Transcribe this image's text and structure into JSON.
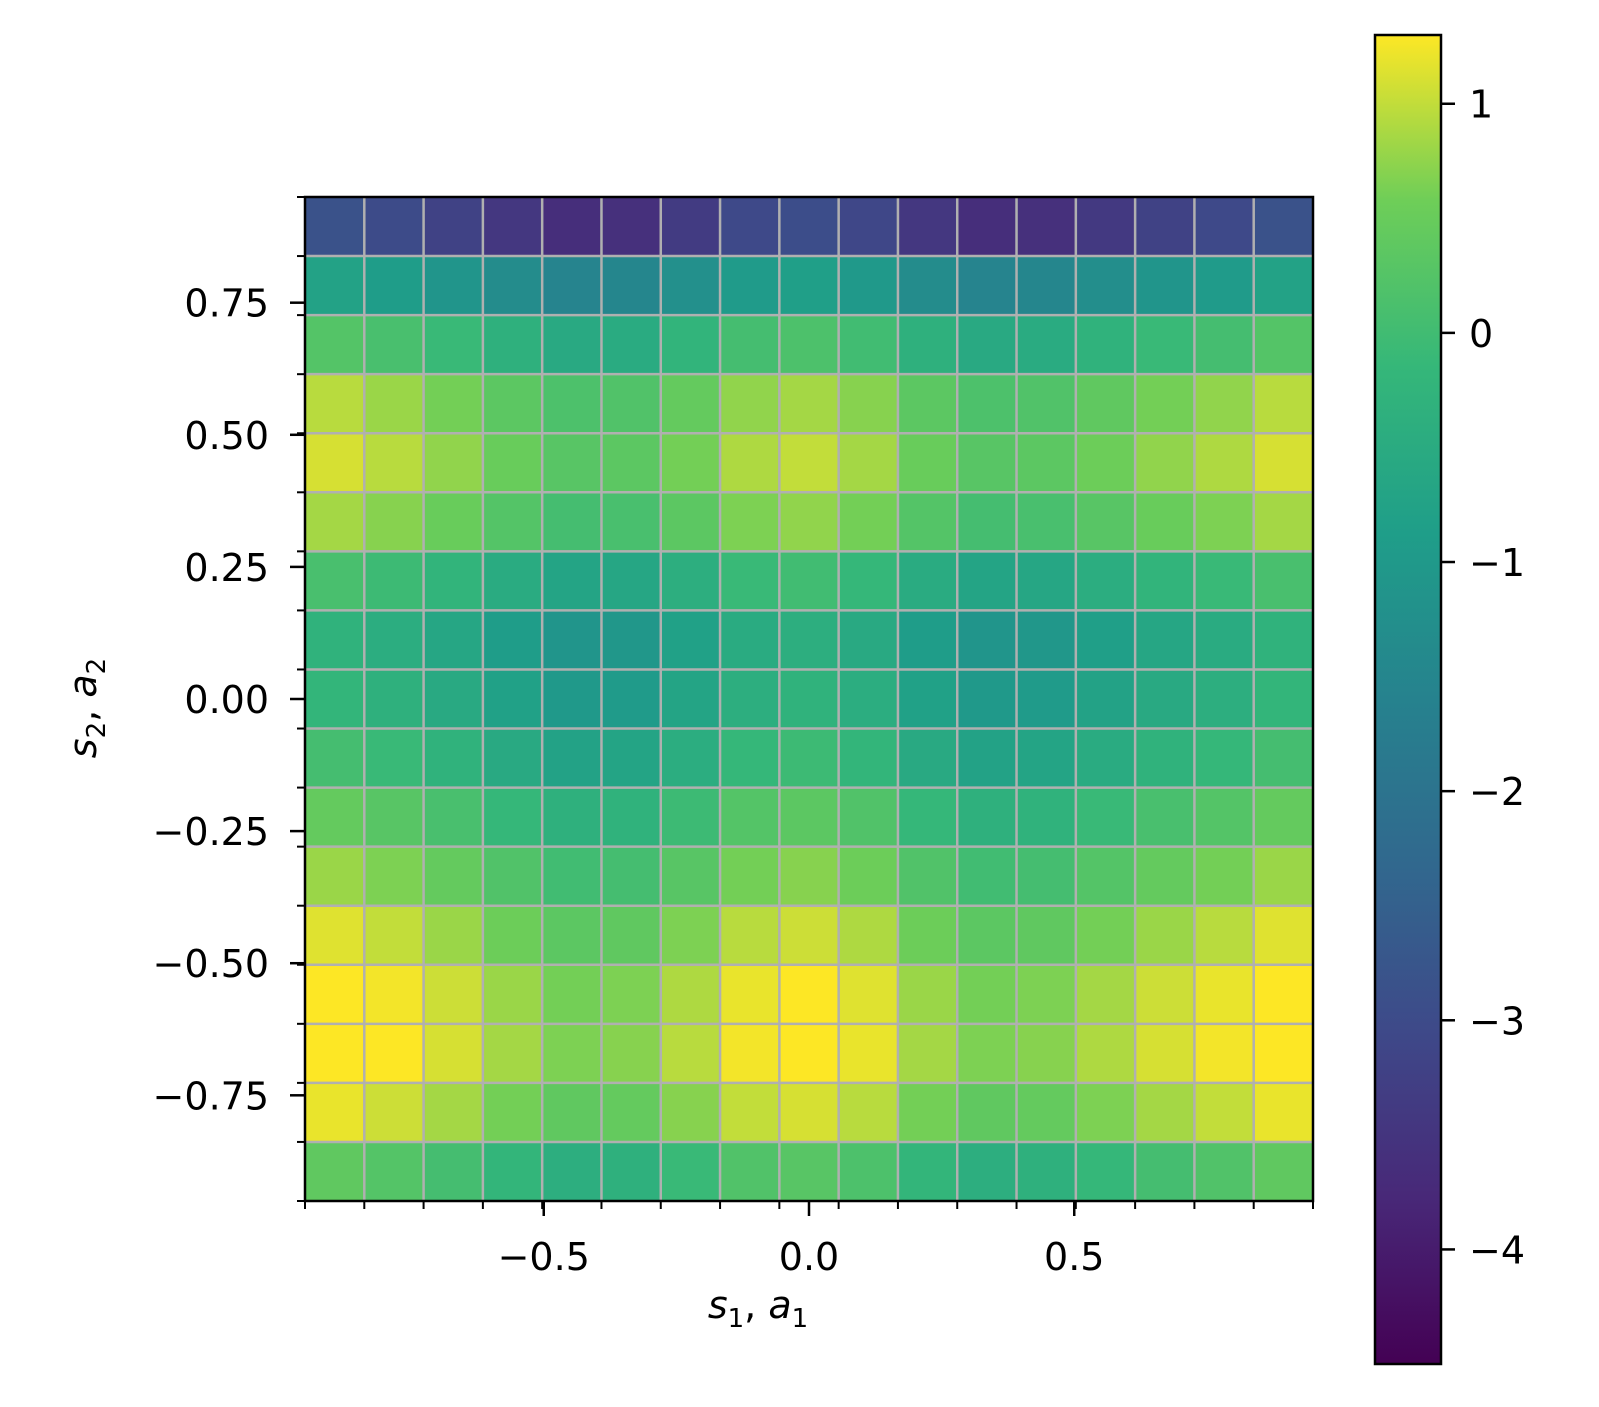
{
  "chart_data": {
    "type": "heatmap",
    "title": "",
    "xlabel": {
      "base1": "s",
      "sub1": "1",
      "sep": ", ",
      "base2": "a",
      "sub2": "1"
    },
    "ylabel": {
      "base1": "s",
      "sub1": "2",
      "sep": ", ",
      "base2": "a",
      "sub2": "2"
    },
    "xlim": [
      -0.95,
      0.95
    ],
    "ylim": [
      -0.95,
      0.95
    ],
    "x_ticks": [
      -0.5,
      0.0,
      0.5
    ],
    "x_tick_labels": [
      "−0.5",
      "0.0",
      "0.5"
    ],
    "y_ticks": [
      0.75,
      0.5,
      0.25,
      0.0,
      -0.25,
      -0.5,
      -0.75
    ],
    "y_tick_labels": [
      "0.75",
      "0.50",
      "0.25",
      "0.00",
      "−0.25",
      "−0.50",
      "−0.75"
    ],
    "grid": true,
    "grid_cells": 17,
    "colormap": "viridis",
    "colorbar": {
      "range": [
        -4.5,
        1.3
      ],
      "ticks": [
        1,
        0,
        -1,
        -2,
        -3,
        -4
      ],
      "tick_labels": [
        "1",
        "0",
        "−1",
        "−2",
        "−3",
        "−4"
      ]
    },
    "row_y": [
      0.895,
      0.784,
      0.673,
      0.561,
      0.45,
      0.339,
      0.227,
      0.116,
      0.005,
      -0.106,
      -0.218,
      -0.329,
      -0.44,
      -0.552,
      -0.663,
      -0.774,
      -0.886
    ],
    "row_values": [
      -3.2,
      -1.1,
      -0.1,
      0.6,
      0.75,
      0.5,
      -0.25,
      -0.65,
      -0.55,
      -0.3,
      0.1,
      0.45,
      0.8,
      1.05,
      1.1,
      0.85,
      0.05
    ],
    "column_x": [
      -0.895,
      -0.784,
      -0.673,
      -0.561,
      -0.45,
      -0.339,
      -0.227,
      -0.116,
      -0.005,
      0.106,
      0.218,
      0.329,
      0.44,
      0.552,
      0.663,
      0.774,
      0.886
    ],
    "column_offsets": [
      0.35,
      0.2,
      0.0,
      -0.25,
      -0.45,
      -0.4,
      -0.15,
      0.15,
      0.25,
      0.1,
      -0.25,
      -0.45,
      -0.4,
      -0.2,
      0.0,
      0.15,
      0.35
    ]
  }
}
